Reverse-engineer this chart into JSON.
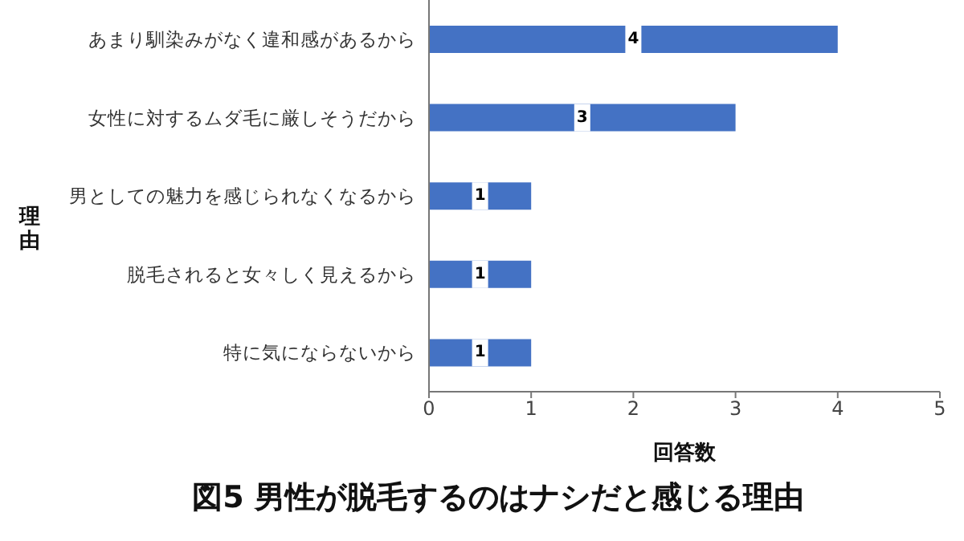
{
  "chart_data": {
    "type": "bar",
    "orientation": "horizontal",
    "title": "図5 男性が脱毛するのはナシだと感じる理由",
    "xlabel": "回答数",
    "ylabel": "理由",
    "categories": [
      "あまり馴染みがなく違和感があるから",
      "女性に対するムダ毛に厳しそうだから",
      "男としての魅力を感じられなくなるから",
      "脱毛されると女々しく見えるから",
      "特に気にならないから"
    ],
    "values": [
      4,
      3,
      1,
      1,
      1
    ],
    "color": "#4472c4",
    "xlim": [
      0,
      5
    ],
    "xticks": [
      0,
      1,
      2,
      3,
      4,
      5
    ],
    "data_labels": true
  }
}
